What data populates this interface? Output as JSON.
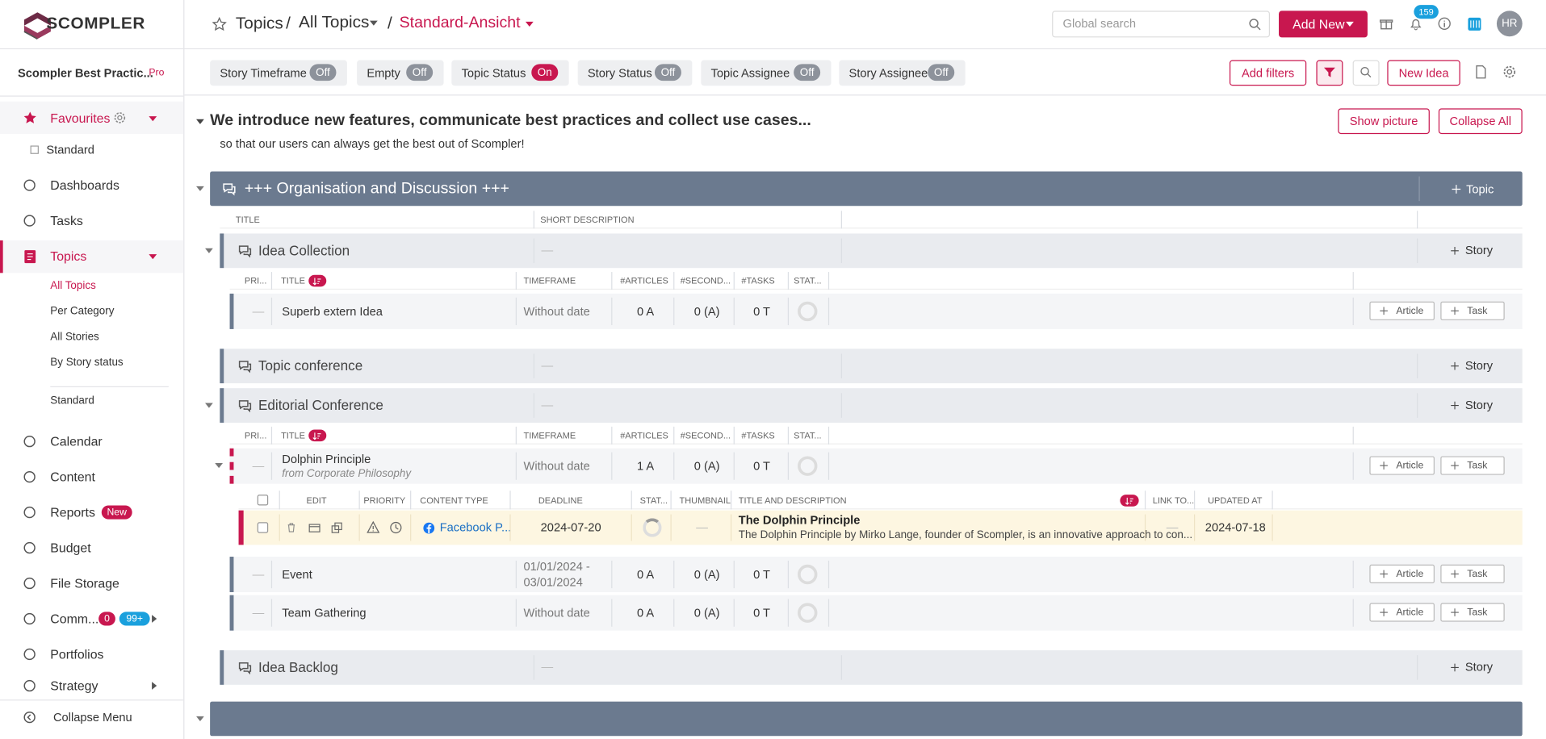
{
  "header": {
    "logo": "SCOMPLER",
    "breadcrumb": [
      "Topics",
      "All Topics",
      "Standard-Ansicht"
    ],
    "separator": "/",
    "search_placeholder": "Global search",
    "add_new": "Add New",
    "notifications": "159",
    "avatar": "HR"
  },
  "filters": {
    "toggles": [
      {
        "label": "Story Timeframe",
        "state": "Off"
      },
      {
        "label": "Empty",
        "state": "Off"
      },
      {
        "label": "Topic Status",
        "state": "On"
      },
      {
        "label": "Story Status",
        "state": "Off"
      },
      {
        "label": "Topic Assignee",
        "state": "Off"
      },
      {
        "label": "Story Assignee",
        "state": "Off"
      }
    ],
    "add_filters": "Add filters",
    "new_idea": "New Idea"
  },
  "sidebar": {
    "workspace": "Scompler Best Practic...",
    "plan": "Pro",
    "favourites": "Favourites",
    "favourite_items": [
      "Standard"
    ],
    "nav_top": [
      "Dashboards",
      "Tasks"
    ],
    "topics": "Topics",
    "topic_items": [
      "All Topics",
      "Per Category",
      "All Stories",
      "By Story status"
    ],
    "topic_view": "Standard",
    "nav": [
      {
        "label": "Calendar"
      },
      {
        "label": "Content"
      },
      {
        "label": "Reports",
        "badges": [
          "New"
        ]
      },
      {
        "label": "Budget"
      },
      {
        "label": "File Storage"
      },
      {
        "label": "Comm...",
        "badges": [
          "0",
          "99+"
        ]
      },
      {
        "label": "Portfolios"
      },
      {
        "label": "Strategy"
      }
    ],
    "collapse": "Collapse Menu"
  },
  "intro": {
    "title": "We introduce new features, communicate best practices and collect use cases...",
    "subtitle": "so that our users can always get the best out of Scompler!",
    "show_picture": "Show picture",
    "collapse_all": "Collapse All"
  },
  "story_columns": [
    "PRI...",
    "TITLE",
    "TIMEFRAME",
    "#ARTICLES",
    "#SECOND...",
    "#TASKS",
    "STAT..."
  ],
  "story_actions": [
    "Article",
    "Task"
  ],
  "content_columns": [
    "EDIT",
    "PRIORITY",
    "CONTENT TYPE",
    "DEADLINE",
    "STAT...",
    "THUMBNAIL",
    "TITLE AND DESCRIPTION",
    "LINK TO...",
    "UPDATED AT"
  ],
  "category": {
    "title": "+++ Organisation and Discussion +++",
    "add": "Topic",
    "columns": [
      "TITLE",
      "SHORT DESCRIPTION"
    ],
    "topics": [
      {
        "title": "Idea Collection",
        "description": "—",
        "add": "Story",
        "stories": [
          {
            "priority": "—",
            "title": "Superb extern Idea",
            "timeframe": "Without date",
            "articles": "0 A",
            "secondary": "0 (A)",
            "tasks": "0 T"
          }
        ]
      },
      {
        "title": "Topic conference",
        "description": "—",
        "add": "Story",
        "stories": []
      },
      {
        "title": "Editorial Conference",
        "description": "—",
        "add": "Story",
        "stories": [
          {
            "priority": "—",
            "title": "Dolphin Principle",
            "source": "from Corporate Philosophy",
            "timeframe": "Without date",
            "articles": "1 A",
            "secondary": "0 (A)",
            "tasks": "0 T",
            "contents": [
              {
                "content_type": "Facebook P...",
                "deadline": "2024-07-20",
                "thumbnail": "—",
                "title": "The Dolphin Principle",
                "description": "The Dolphin Principle by Mirko Lange, founder of Scompler, is an innovative approach to con...",
                "link": "—",
                "updated_at": "2024-07-18"
              }
            ]
          },
          {
            "priority": "—",
            "title": "Event",
            "timeframe": "01/01/2024 - 03/01/2024",
            "articles": "0 A",
            "secondary": "0 (A)",
            "tasks": "0 T"
          },
          {
            "priority": "—",
            "title": "Team Gathering",
            "timeframe": "Without date",
            "articles": "0 A",
            "secondary": "0 (A)",
            "tasks": "0 T"
          }
        ]
      },
      {
        "title": "Idea Backlog",
        "description": "—",
        "add": "Story",
        "stories": []
      }
    ]
  }
}
